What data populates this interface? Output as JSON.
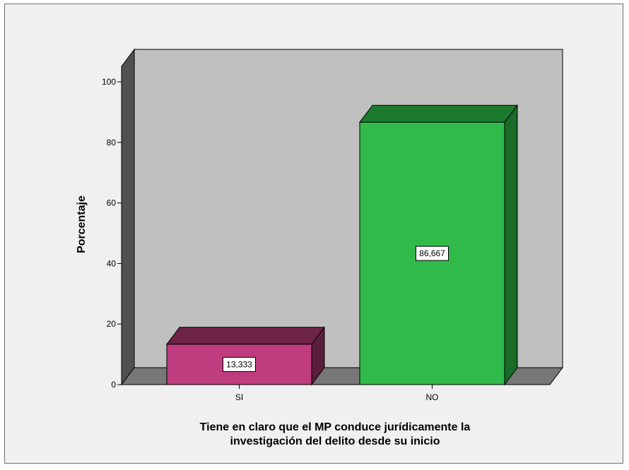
{
  "chart_data": {
    "type": "bar",
    "categories": [
      "SI",
      "NO"
    ],
    "values": [
      13.333,
      86.667
    ],
    "value_labels": [
      "13,333",
      "86,667"
    ],
    "ylabel": "Porcentaje",
    "xlabel_lines": [
      "Tiene en claro que el MP conduce jurídicamente la",
      "investigación del delito desde su inicio"
    ],
    "ylim": [
      0,
      100
    ],
    "yticks": [
      0,
      20,
      40,
      60,
      80,
      100
    ],
    "ytick_labels": [
      "0",
      "20",
      "40",
      "60",
      "80",
      "100"
    ],
    "grid": false,
    "colors": {
      "SI": {
        "front": "#bf3c7e",
        "top": "#6e2447",
        "side": "#5a1d3a"
      },
      "NO": {
        "front": "#2fba4a",
        "top": "#1c7a2e",
        "side": "#196b28"
      },
      "plot_back": "#c0c0c0",
      "plot_floor": "#777777",
      "plot_wall": "#505050",
      "frame_bg": "#f0f0f0"
    }
  }
}
